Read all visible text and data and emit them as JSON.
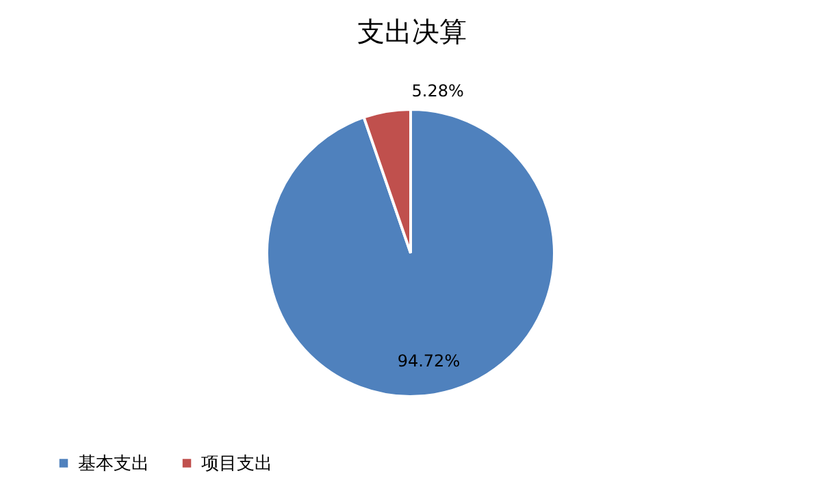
{
  "chart_data": {
    "type": "pie",
    "title": "支出决算",
    "categories": [
      "基本支出",
      "项目支出"
    ],
    "values": [
      94.72,
      5.28
    ],
    "colors": [
      "#4f81bd",
      "#c0504d"
    ],
    "value_labels": [
      "94.72%",
      "5.28%"
    ],
    "legend": "bottom left"
  }
}
